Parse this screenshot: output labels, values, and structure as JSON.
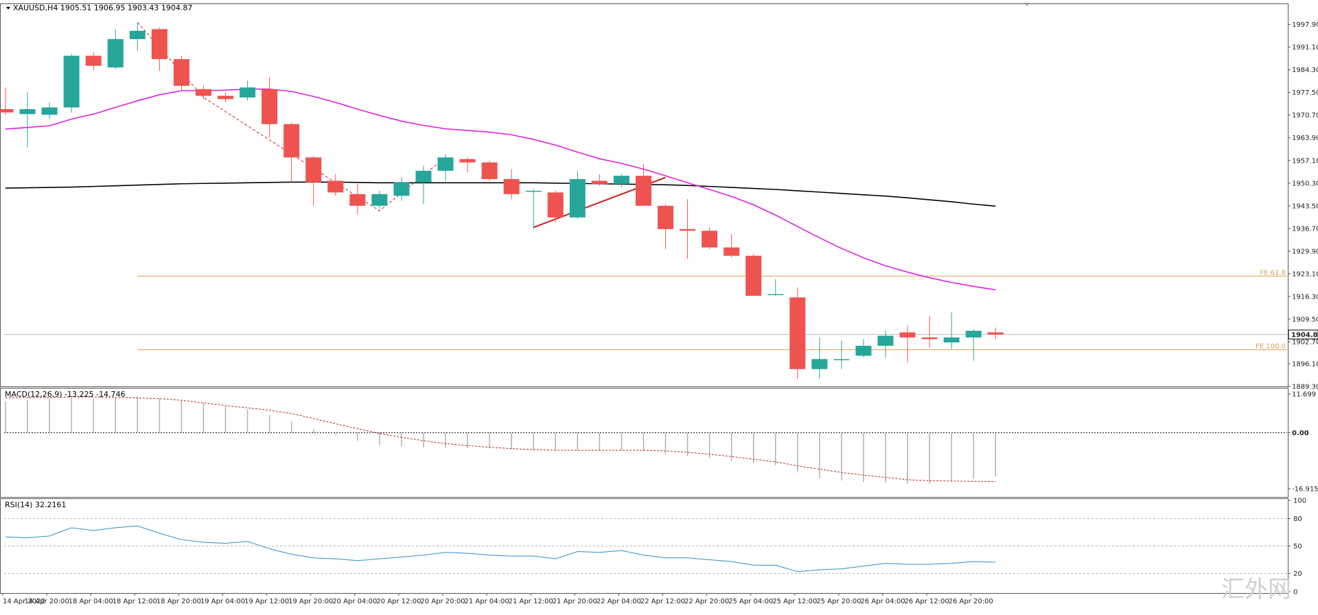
{
  "chart_data": {
    "type": "candlestick",
    "main_pane": {
      "title": "XAUUSD,H4",
      "ohlc_readout": "1905.51 1906.95 1903.43 1904.87",
      "ylim": [
        1889.3,
        2004.0
      ],
      "price_ticks": [
        "1997.90",
        "1991.10",
        "1984.30",
        "1977.50",
        "1970.70",
        "1963.90",
        "1957.10",
        "1950.30",
        "1943.50",
        "1936.70",
        "1929.90",
        "1923.10",
        "1916.30",
        "1909.50",
        "1902.70",
        "1896.10",
        "1889.30"
      ],
      "current_price": "1904.87",
      "colors": {
        "bull": "#26a69a",
        "bear": "#ef5350",
        "ma_fast": "#e020e0",
        "ma_slow": "#000000",
        "fib": "#e0a050",
        "trend": "#d11a1a"
      },
      "candles": [
        {
          "o": 1972.5,
          "h": 1979.0,
          "l": 1970.8,
          "c": 1971.5
        },
        {
          "o": 1971.0,
          "h": 1977.5,
          "l": 1961.0,
          "c": 1972.5
        },
        {
          "o": 1970.8,
          "h": 1974.5,
          "l": 1969.5,
          "c": 1973.0
        },
        {
          "o": 1973.0,
          "h": 1989.0,
          "l": 1971.5,
          "c": 1988.5
        },
        {
          "o": 1988.5,
          "h": 1989.5,
          "l": 1984.0,
          "c": 1985.5
        },
        {
          "o": 1985.0,
          "h": 1996.5,
          "l": 1984.5,
          "c": 1993.5
        },
        {
          "o": 1993.5,
          "h": 1998.5,
          "l": 1990.0,
          "c": 1996.0
        },
        {
          "o": 1996.5,
          "h": 1997.0,
          "l": 1984.0,
          "c": 1987.5
        },
        {
          "o": 1987.5,
          "h": 1988.5,
          "l": 1978.0,
          "c": 1979.5
        },
        {
          "o": 1978.5,
          "h": 1979.5,
          "l": 1975.5,
          "c": 1976.5
        },
        {
          "o": 1976.5,
          "h": 1977.5,
          "l": 1974.5,
          "c": 1975.5
        },
        {
          "o": 1976.0,
          "h": 1981.0,
          "l": 1975.0,
          "c": 1979.0
        },
        {
          "o": 1978.5,
          "h": 1982.0,
          "l": 1964.0,
          "c": 1968.0
        },
        {
          "o": 1968.0,
          "h": 1968.5,
          "l": 1950.5,
          "c": 1958.0
        },
        {
          "o": 1958.0,
          "h": 1958.5,
          "l": 1943.5,
          "c": 1950.5
        },
        {
          "o": 1951.0,
          "h": 1953.0,
          "l": 1946.5,
          "c": 1947.5
        },
        {
          "o": 1947.0,
          "h": 1950.0,
          "l": 1941.0,
          "c": 1943.5
        },
        {
          "o": 1943.5,
          "h": 1948.0,
          "l": 1942.5,
          "c": 1947.0
        },
        {
          "o": 1946.5,
          "h": 1952.0,
          "l": 1945.0,
          "c": 1950.5
        },
        {
          "o": 1950.5,
          "h": 1955.5,
          "l": 1944.0,
          "c": 1954.0
        },
        {
          "o": 1954.0,
          "h": 1959.0,
          "l": 1951.0,
          "c": 1958.0
        },
        {
          "o": 1957.5,
          "h": 1958.0,
          "l": 1953.5,
          "c": 1956.5
        },
        {
          "o": 1956.5,
          "h": 1957.0,
          "l": 1951.0,
          "c": 1951.5
        },
        {
          "o": 1951.5,
          "h": 1954.5,
          "l": 1945.5,
          "c": 1947.0
        },
        {
          "o": 1948.0,
          "h": 1948.5,
          "l": 1936.5,
          "c": 1948.0
        },
        {
          "o": 1947.5,
          "h": 1948.0,
          "l": 1938.5,
          "c": 1940.0
        },
        {
          "o": 1940.0,
          "h": 1954.0,
          "l": 1939.5,
          "c": 1951.5
        },
        {
          "o": 1951.0,
          "h": 1953.0,
          "l": 1949.5,
          "c": 1950.0
        },
        {
          "o": 1950.0,
          "h": 1953.0,
          "l": 1949.0,
          "c": 1952.5
        },
        {
          "o": 1952.5,
          "h": 1956.0,
          "l": 1943.5,
          "c": 1943.5
        },
        {
          "o": 1943.5,
          "h": 1944.0,
          "l": 1930.5,
          "c": 1936.5
        },
        {
          "o": 1936.5,
          "h": 1945.5,
          "l": 1927.5,
          "c": 1936.0
        },
        {
          "o": 1936.0,
          "h": 1937.0,
          "l": 1930.5,
          "c": 1931.0
        },
        {
          "o": 1931.0,
          "h": 1935.0,
          "l": 1928.0,
          "c": 1928.5
        },
        {
          "o": 1928.5,
          "h": 1929.0,
          "l": 1916.5,
          "c": 1916.5
        },
        {
          "o": 1917.0,
          "h": 1921.5,
          "l": 1916.5,
          "c": 1917.0
        },
        {
          "o": 1916.0,
          "h": 1919.0,
          "l": 1891.5,
          "c": 1894.5
        },
        {
          "o": 1894.5,
          "h": 1904.0,
          "l": 1891.5,
          "c": 1897.5
        },
        {
          "o": 1897.5,
          "h": 1903.0,
          "l": 1894.5,
          "c": 1897.5
        },
        {
          "o": 1898.5,
          "h": 1903.5,
          "l": 1898.0,
          "c": 1901.5
        },
        {
          "o": 1901.5,
          "h": 1906.0,
          "l": 1898.0,
          "c": 1904.5
        },
        {
          "o": 1905.5,
          "h": 1907.5,
          "l": 1896.5,
          "c": 1904.0
        },
        {
          "o": 1904.0,
          "h": 1910.5,
          "l": 1901.0,
          "c": 1903.5
        },
        {
          "o": 1902.5,
          "h": 1911.5,
          "l": 1900.5,
          "c": 1904.0
        },
        {
          "o": 1904.0,
          "h": 1906.5,
          "l": 1897.0,
          "c": 1906.0
        },
        {
          "o": 1905.51,
          "h": 1906.95,
          "l": 1903.43,
          "c": 1904.87
        }
      ],
      "ma_fast": [
        1966.5,
        1967.0,
        1967.5,
        1969.5,
        1971.0,
        1973.0,
        1975.0,
        1976.8,
        1978.0,
        1978.0,
        1978.2,
        1978.5,
        1978.5,
        1977.8,
        1976.3,
        1974.5,
        1972.5,
        1970.6,
        1968.9,
        1967.6,
        1966.6,
        1966.1,
        1965.6,
        1964.8,
        1963.4,
        1961.7,
        1959.6,
        1957.6,
        1956.2,
        1954.5,
        1952.5,
        1950.4,
        1948.4,
        1946.3,
        1943.8,
        1940.7,
        1937.3,
        1933.9,
        1930.7,
        1927.9,
        1925.5,
        1923.6,
        1921.9,
        1920.5,
        1919.3,
        1918.3
      ],
      "ma_slow": [
        1948.8,
        1948.9,
        1949.0,
        1949.1,
        1949.3,
        1949.5,
        1949.7,
        1949.9,
        1950.1,
        1950.2,
        1950.3,
        1950.4,
        1950.5,
        1950.6,
        1950.6,
        1950.6,
        1950.5,
        1950.4,
        1950.4,
        1950.4,
        1950.4,
        1950.4,
        1950.4,
        1950.4,
        1950.4,
        1950.3,
        1950.2,
        1950.1,
        1950.0,
        1949.9,
        1949.8,
        1949.6,
        1949.3,
        1949.0,
        1948.7,
        1948.4,
        1948.0,
        1947.6,
        1947.2,
        1946.8,
        1946.4,
        1945.9,
        1945.3,
        1944.7,
        1944.0,
        1943.4
      ],
      "fib_lines": [
        {
          "label": "FE 61.8",
          "price": 1922.4,
          "start_index": 6
        },
        {
          "label": "FE 100.0",
          "price": 1900.3,
          "start_index": 6
        }
      ],
      "zigzag": [
        {
          "index": 6,
          "price": 1998.5
        },
        {
          "index": 9,
          "price": 1976.0
        },
        {
          "index": 17,
          "price": 1942.0
        },
        {
          "index": 20,
          "price": 1958.0
        }
      ],
      "trend_segment": {
        "from": {
          "index": 24,
          "price": 1937.0
        },
        "to": {
          "index": 30,
          "price": 1952.0
        }
      },
      "current_price_line": 1904.87
    },
    "macd_pane": {
      "title": "MACD(12,26,9) -13.225 -14.746",
      "ylim": [
        -16.915,
        11.699
      ],
      "ticks": [
        "11.699",
        "0.00",
        "-16.915"
      ],
      "histogram": [
        9.5,
        9.8,
        10.3,
        10.5,
        10.2,
        10.6,
        10.8,
        10.3,
        9.8,
        9.0,
        8.0,
        7.0,
        5.4,
        3.3,
        1.1,
        -0.5,
        -2.5,
        -3.6,
        -4.2,
        -4.5,
        -4.7,
        -4.7,
        -4.6,
        -5.0,
        -5.3,
        -5.3,
        -5.3,
        -5.3,
        -5.3,
        -5.6,
        -6.5,
        -7.1,
        -7.6,
        -8.5,
        -9.2,
        -9.8,
        -12.0,
        -13.8,
        -14.4,
        -14.9,
        -15.1,
        -15.4,
        -15.4,
        -14.7,
        -13.8,
        -13.225
      ],
      "signal": [
        10.5,
        10.6,
        10.6,
        10.8,
        10.8,
        10.6,
        10.5,
        10.3,
        9.8,
        9.0,
        8.2,
        7.5,
        6.8,
        5.8,
        4.3,
        2.7,
        1.2,
        -0.2,
        -1.4,
        -2.4,
        -3.3,
        -3.9,
        -4.4,
        -4.8,
        -5.1,
        -5.3,
        -5.3,
        -5.3,
        -5.3,
        -5.3,
        -5.5,
        -5.9,
        -6.5,
        -7.2,
        -8.0,
        -8.8,
        -10.0,
        -11.0,
        -12.0,
        -12.8,
        -13.5,
        -14.2,
        -14.5,
        -14.6,
        -14.7,
        -14.746
      ]
    },
    "rsi_pane": {
      "title": "RSI(14) 32.2161",
      "ylim": [
        0,
        100
      ],
      "ticks": [
        "100",
        "80",
        "50",
        "20",
        "0"
      ],
      "levels": [
        80,
        50,
        20
      ],
      "values": [
        60,
        59,
        61,
        70,
        67,
        70,
        72,
        64,
        57,
        54,
        53,
        55,
        47,
        41,
        37,
        36,
        34,
        36,
        38,
        40,
        43,
        42,
        40,
        39,
        39,
        36,
        44,
        43,
        45,
        40,
        37,
        37,
        35,
        33,
        29,
        29,
        22,
        24,
        25,
        28,
        31,
        30,
        30,
        31,
        33,
        32.2
      ]
    },
    "time_ticks": [
      "14 Apr 2022",
      "14 Apr 20:00",
      "18 Apr 04:00",
      "18 Apr 12:00",
      "18 Apr 20:00",
      "19 Apr 04:00",
      "19 Apr 12:00",
      "19 Apr 20:00",
      "20 Apr 04:00",
      "20 Apr 12:00",
      "20 Apr 20:00",
      "21 Apr 04:00",
      "21 Apr 12:00",
      "21 Apr 20:00",
      "22 Apr 04:00",
      "22 Apr 12:00",
      "22 Apr 20:00",
      "25 Apr 04:00",
      "25 Apr 12:00",
      "25 Apr 20:00",
      "26 Apr 04:00",
      "26 Apr 12:00",
      "26 Apr 20:00"
    ],
    "watermark": "汇外网"
  }
}
